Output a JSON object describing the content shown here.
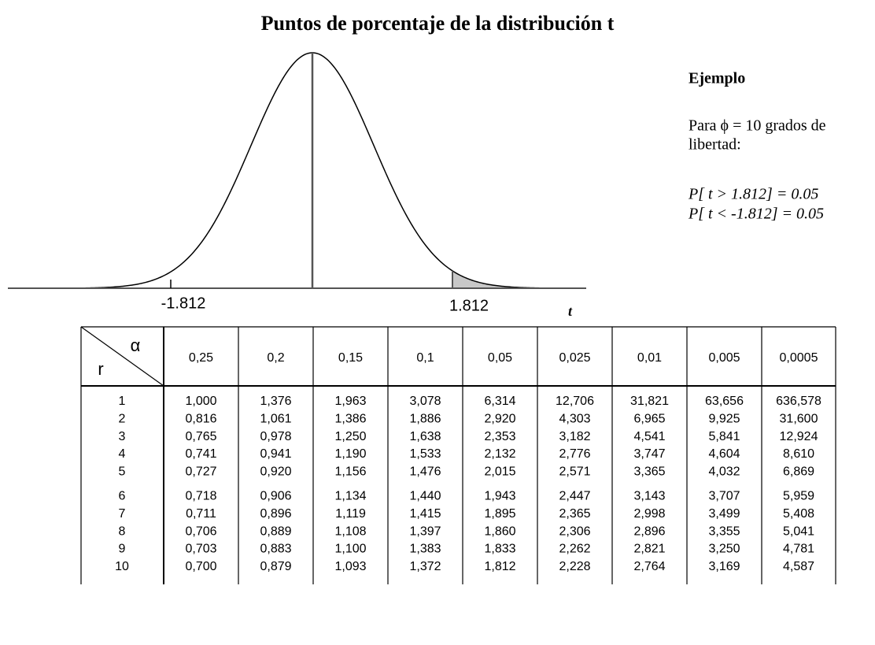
{
  "header": {
    "title": "Puntos de porcentaje de la distribución t"
  },
  "figure": {
    "left_label": "-1.812",
    "right_label": "1.812",
    "axis_label": "t"
  },
  "example": {
    "heading": "Ejemplo",
    "lines": [
      "Para ϕ = 10 grados de",
      "libertad:"
    ],
    "formulas": [
      "P[ t > 1.812] = 0.05",
      "P[ t < -1.812] = 0.05"
    ]
  },
  "table": {
    "alpha": "α",
    "r": "r",
    "columns": [
      "0,25",
      "0,2",
      "0,15",
      "0,1",
      "0,05",
      "0,025",
      "0,01",
      "0,005",
      "0,0005"
    ],
    "rows": [
      [
        "1",
        "1,000",
        "1,376",
        "1,963",
        "3,078",
        "6,314",
        "12,706",
        "31,821",
        "63,656",
        "636,578"
      ],
      [
        "2",
        "0,816",
        "1,061",
        "1,386",
        "1,886",
        "2,920",
        "4,303",
        "6,965",
        "9,925",
        "31,600"
      ],
      [
        "3",
        "0,765",
        "0,978",
        "1,250",
        "1,638",
        "2,353",
        "3,182",
        "4,541",
        "5,841",
        "12,924"
      ],
      [
        "4",
        "0,741",
        "0,941",
        "1,190",
        "1,533",
        "2,132",
        "2,776",
        "3,747",
        "4,604",
        "8,610"
      ],
      [
        "5",
        "0,727",
        "0,920",
        "1,156",
        "1,476",
        "2,015",
        "2,571",
        "3,365",
        "4,032",
        "6,869"
      ],
      [
        "6",
        "0,718",
        "0,906",
        "1,134",
        "1,440",
        "1,943",
        "2,447",
        "3,143",
        "3,707",
        "5,959"
      ],
      [
        "7",
        "0,711",
        "0,896",
        "1,119",
        "1,415",
        "1,895",
        "2,365",
        "2,998",
        "3,499",
        "5,408"
      ],
      [
        "8",
        "0,706",
        "0,889",
        "1,108",
        "1,397",
        "1,860",
        "2,306",
        "2,896",
        "3,355",
        "5,041"
      ],
      [
        "9",
        "0,703",
        "0,883",
        "1,100",
        "1,383",
        "1,833",
        "2,262",
        "2,821",
        "3,250",
        "4,781"
      ],
      [
        "10",
        "0,700",
        "0,879",
        "1,093",
        "1,372",
        "1,812",
        "2,228",
        "2,764",
        "3,169",
        "4,587"
      ]
    ]
  }
}
